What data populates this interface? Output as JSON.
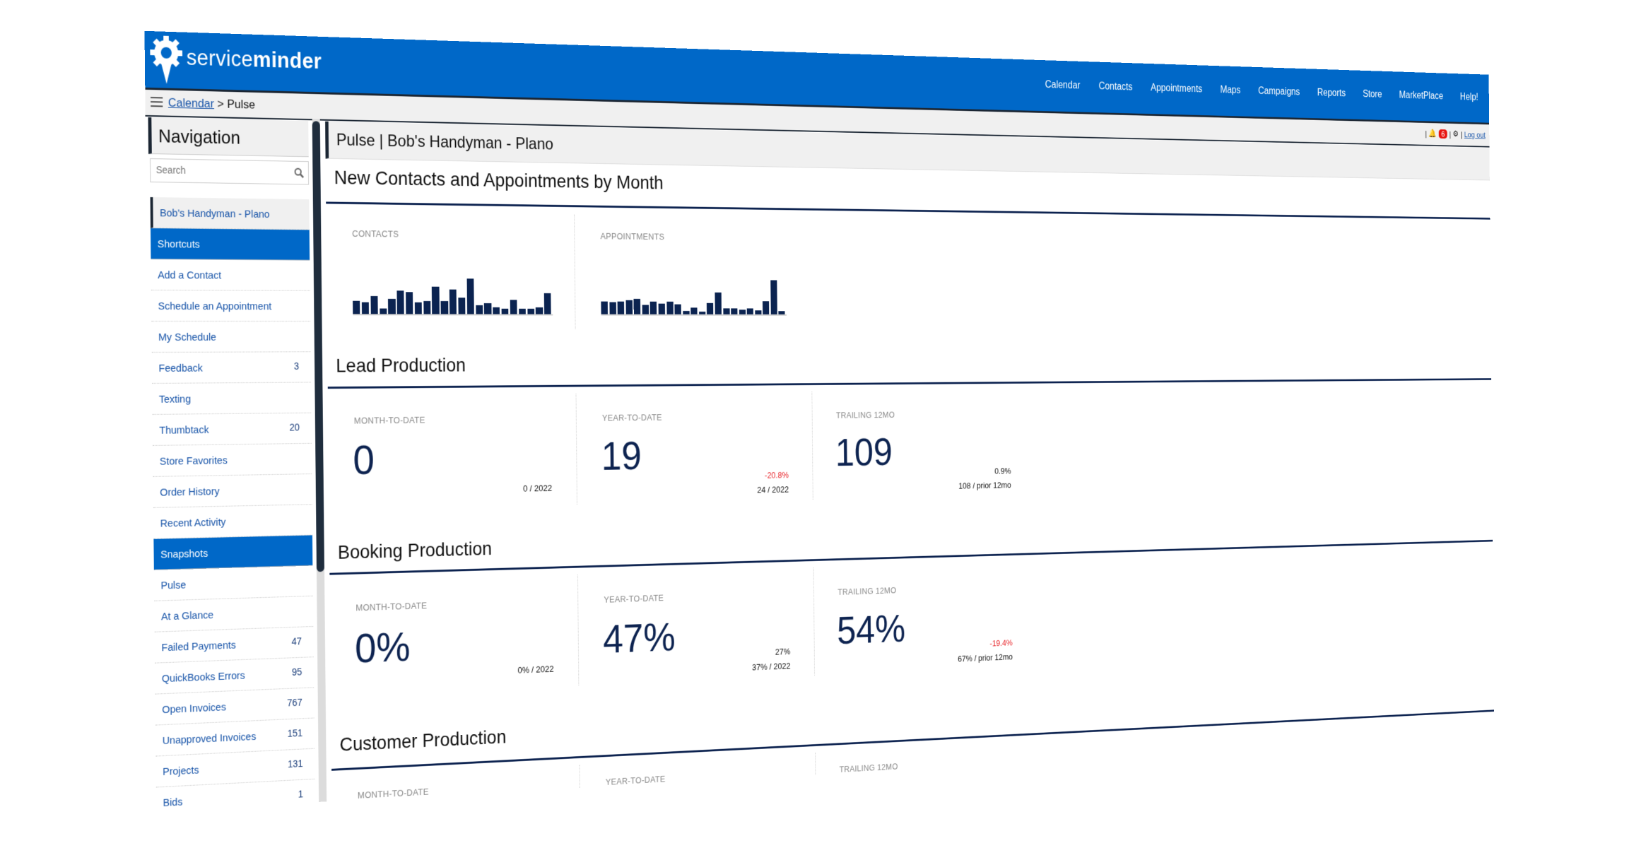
{
  "app": {
    "brand_light": "service",
    "brand_bold": "minder"
  },
  "topnav": [
    "Calendar",
    "Contacts",
    "Appointments",
    "Maps",
    "Campaigns",
    "Reports",
    "Store",
    "MarketPlace",
    "Help!"
  ],
  "breadcrumb": {
    "link": "Calendar",
    "separator": ">",
    "current": "Pulse"
  },
  "userbar": {
    "notifications": "6",
    "logout": "Log out"
  },
  "sidebar": {
    "title": "Navigation",
    "search_placeholder": "Search",
    "items": [
      {
        "label": "Bob's Handyman - Plano",
        "type": "context"
      },
      {
        "label": "Shortcuts",
        "type": "header"
      },
      {
        "label": "Add a Contact"
      },
      {
        "label": "Schedule an Appointment"
      },
      {
        "label": "My Schedule"
      },
      {
        "label": "Feedback",
        "count": "3"
      },
      {
        "label": "Texting"
      },
      {
        "label": "Thumbtack",
        "count": "20"
      },
      {
        "label": "Store Favorites"
      },
      {
        "label": "Order History"
      },
      {
        "label": "Recent Activity"
      },
      {
        "label": "Snapshots",
        "type": "header"
      },
      {
        "label": "Pulse"
      },
      {
        "label": "At a Glance"
      },
      {
        "label": "Failed Payments",
        "count": "47"
      },
      {
        "label": "QuickBooks Errors",
        "count": "95"
      },
      {
        "label": "Open Invoices",
        "count": "767"
      },
      {
        "label": "Unapproved Invoices",
        "count": "151"
      },
      {
        "label": "Projects",
        "count": "131"
      },
      {
        "label": "Bids",
        "count": "1"
      }
    ]
  },
  "main": {
    "title": "Pulse | Bob's Handyman - Plano",
    "monthly": {
      "heading": "New Contacts and Appointments by Month",
      "contacts_label": "CONTACTS",
      "appointments_label": "APPOINTMENTS"
    },
    "lead": {
      "heading": "Lead Production",
      "mtd": {
        "label": "MONTH-TO-DATE",
        "value": "0",
        "sub": "0 / 2022"
      },
      "ytd": {
        "label": "YEAR-TO-DATE",
        "value": "19",
        "change": "-20.8%",
        "sub": "24 / 2022"
      },
      "t12": {
        "label": "TRAILING 12MO",
        "value": "109",
        "change": "0.9%",
        "sub": "108 / prior 12mo"
      }
    },
    "booking": {
      "heading": "Booking Production",
      "mtd": {
        "label": "MONTH-TO-DATE",
        "value": "0%",
        "sub": "0% / 2022"
      },
      "ytd": {
        "label": "YEAR-TO-DATE",
        "value": "47%",
        "change": "27%",
        "sub": "37% / 2022"
      },
      "t12": {
        "label": "TRAILING 12MO",
        "value": "54%",
        "change": "-19.4%",
        "sub": "67% / prior 12mo"
      }
    },
    "customer": {
      "heading": "Customer Production",
      "mtd": {
        "label": "MONTH-TO-DATE"
      },
      "ytd": {
        "label": "YEAR-TO-DATE"
      },
      "t12": {
        "label": "TRAILING 12MO"
      }
    }
  },
  "colors": {
    "brand_blue": "#0068c8",
    "navy": "#0d2350",
    "negative": "#e8262b"
  },
  "chart_data": [
    {
      "type": "bar",
      "title": "CONTACTS",
      "relative_values": [
        55,
        48,
        75,
        23,
        62,
        96,
        90,
        48,
        54,
        113,
        54,
        103,
        68,
        148,
        37,
        47,
        29,
        23,
        60,
        23,
        23,
        29,
        88
      ]
    },
    {
      "type": "bar",
      "title": "APPOINTMENTS",
      "relative_values": [
        53,
        50,
        53,
        59,
        63,
        39,
        53,
        45,
        53,
        42,
        15,
        28,
        12,
        48,
        93,
        25,
        25,
        21,
        25,
        18,
        57,
        145,
        15
      ]
    }
  ]
}
